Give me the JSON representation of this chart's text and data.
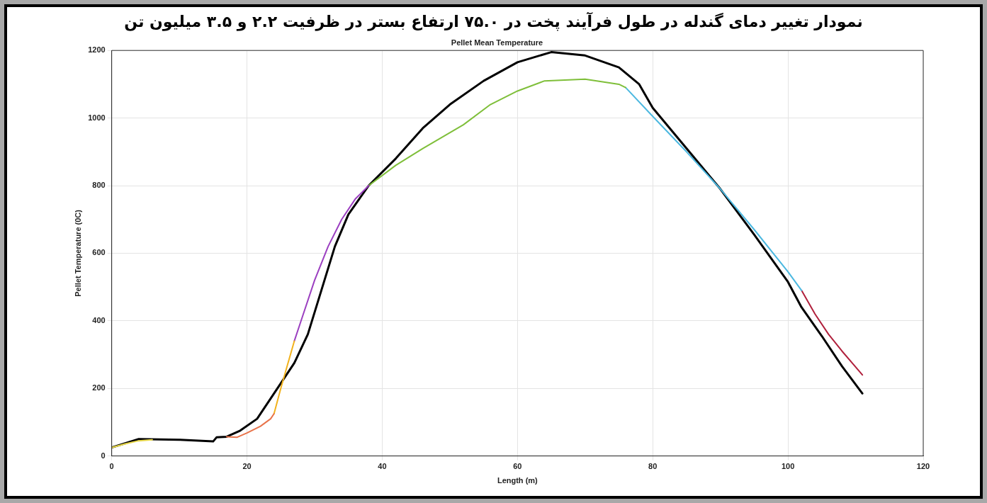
{
  "chart_data": {
    "type": "line",
    "title": "Pellet Mean Temperature",
    "subtitle": "نمودار تغییر دمای گندله در طول فرآیند پخت در ۷۵.۰ ارتفاع بستر در ظرفیت ۲.۲ و ۳.۵ میلیون تن",
    "xlabel": "Length (m)",
    "ylabel": "Pellet Temperature (0C)",
    "xlim": [
      0,
      120
    ],
    "xticks": [
      0,
      20,
      40,
      60,
      80,
      100,
      120
    ],
    "ylim": [
      0,
      1200
    ],
    "yticks": [
      0,
      200,
      400,
      600,
      800,
      1000,
      1200
    ],
    "grid": true,
    "legend": false,
    "marker": "none",
    "line_style": "solid",
    "series": [
      {
        "color": "#e8d84a",
        "x": [
          0,
          2,
          4,
          6
        ],
        "values": [
          25,
          36,
          45,
          48
        ]
      },
      {
        "color": "#e8734a",
        "x": [
          17,
          18.5,
          20,
          22,
          23.5,
          24
        ],
        "values": [
          57,
          55,
          68,
          88,
          110,
          125
        ]
      },
      {
        "color": "#f2b21c",
        "x": [
          24,
          25,
          26,
          27
        ],
        "values": [
          125,
          200,
          270,
          340
        ]
      },
      {
        "color": "#9b3fc0",
        "x": [
          27,
          28,
          30,
          32,
          34,
          36,
          38
        ],
        "values": [
          340,
          400,
          520,
          620,
          700,
          760,
          800
        ]
      },
      {
        "color": "#7fbf3a",
        "x": [
          38,
          42,
          46,
          52,
          56,
          60,
          64,
          70,
          75,
          76
        ],
        "values": [
          800,
          860,
          910,
          980,
          1040,
          1080,
          1110,
          1115,
          1100,
          1090
        ]
      },
      {
        "color": "#4cb8e0",
        "x": [
          76,
          80,
          85,
          90,
          95,
          100,
          102
        ],
        "values": [
          1090,
          1005,
          900,
          790,
          670,
          545,
          490
        ]
      },
      {
        "color": "#b0203c",
        "x": [
          102,
          104,
          106,
          108,
          111
        ],
        "values": [
          490,
          420,
          360,
          310,
          240
        ]
      },
      {
        "color": "#000000",
        "x": [
          0,
          4,
          10,
          15,
          15.5,
          17,
          19,
          21.5,
          24,
          27,
          29,
          31,
          33,
          35,
          38,
          42,
          46,
          50,
          55,
          60,
          65,
          70,
          75,
          78,
          80,
          85,
          90,
          95,
          100,
          102,
          105,
          108,
          111
        ],
        "values": [
          25,
          50,
          48,
          43,
          55,
          57,
          75,
          110,
          185,
          275,
          360,
          490,
          620,
          715,
          800,
          880,
          970,
          1040,
          1110,
          1165,
          1195,
          1185,
          1150,
          1100,
          1030,
          910,
          790,
          655,
          515,
          440,
          355,
          265,
          185
        ]
      }
    ]
  }
}
